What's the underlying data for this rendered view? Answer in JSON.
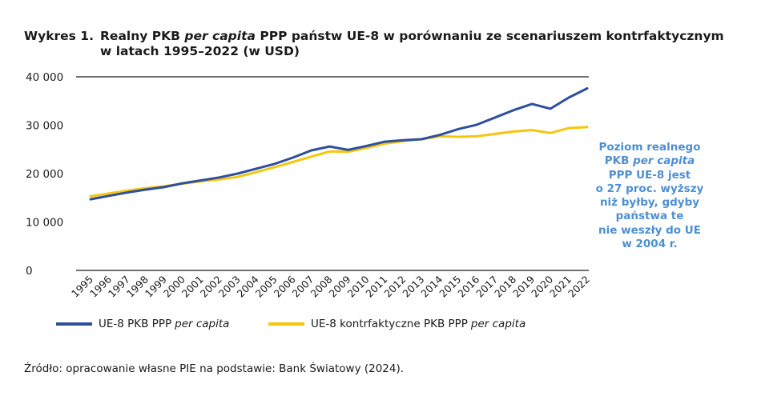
{
  "figure": {
    "title_prefix": "Wykres 1.",
    "title_part1": "Realny PKB",
    "title_italic": "per capita",
    "title_part2": "PPP państw UE-8 w porównaniu ze scenariuszem kontrfaktycznym",
    "title_line2": "w latach 1995–2022 (w USD)",
    "annotation_parts": [
      "Poziom realnego",
      "PKB",
      "per capita",
      "PPP UE-8 jest",
      "o 27 proc. wyższy",
      "niż byłby, gdyby",
      "państwa te",
      "nie weszły do UE",
      "w 2004 r."
    ],
    "source": "Źródło: opracowanie własne PIE na podstawie: Bank Światowy (2024)."
  },
  "chart_data": {
    "type": "line",
    "ylim": [
      0,
      40000
    ],
    "y_ticks": [
      0,
      10000,
      20000,
      30000,
      40000
    ],
    "y_tick_labels": [
      "0",
      "10 000",
      "20 000",
      "30 000",
      "40 000"
    ],
    "x": [
      "1995",
      "1996",
      "1997",
      "1998",
      "1999",
      "2000",
      "2001",
      "2002",
      "2003",
      "2004",
      "2005",
      "2006",
      "2007",
      "2008",
      "2009",
      "2010",
      "2011",
      "2012",
      "2013",
      "2014",
      "2015",
      "2016",
      "2017",
      "2018",
      "2019",
      "2020",
      "2021",
      "2022"
    ],
    "series": [
      {
        "name_main": "UE-8 PKB PPP",
        "name_italic": "per capita",
        "color": "#2e4f9e",
        "values": [
          14700,
          15400,
          16100,
          16700,
          17200,
          18000,
          18600,
          19200,
          20000,
          21000,
          22000,
          23300,
          24800,
          25600,
          24900,
          25700,
          26600,
          26900,
          27100,
          28000,
          29200,
          30100,
          31600,
          33100,
          34400,
          33400,
          35700,
          37600
        ]
      },
      {
        "name_main": "UE-8 kontrfaktyczne PKB PPP",
        "name_italic": "per capita",
        "color": "#f5c60d",
        "values": [
          15300,
          15900,
          16500,
          17000,
          17400,
          17900,
          18400,
          18800,
          19300,
          20300,
          21300,
          22400,
          23500,
          24600,
          24500,
          25300,
          26200,
          26700,
          27100,
          27700,
          27600,
          27700,
          28200,
          28700,
          29000,
          28400,
          29400,
          29600
        ]
      }
    ]
  }
}
